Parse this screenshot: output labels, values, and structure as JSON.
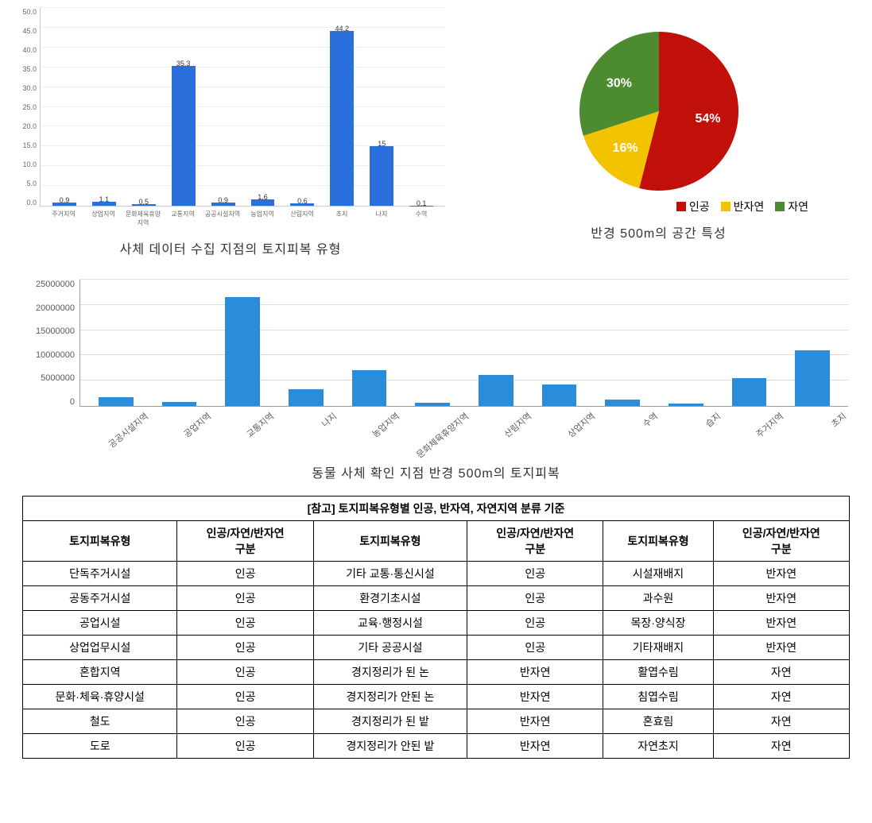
{
  "chart1": {
    "type": "bar",
    "caption": "사체 데이터 수집 지점의 토지피복 유형",
    "categories": [
      "주거지역",
      "상업지역",
      "문화체육휴양지역",
      "교통지역",
      "공공시설지역",
      "농업지역",
      "산림지역",
      "초지",
      "나지",
      "수역"
    ],
    "values": [
      0.9,
      1.1,
      0.5,
      35.3,
      0.9,
      1.6,
      0.6,
      44.2,
      15.0,
      0.1
    ],
    "bar_color": "#2a6fdb",
    "ylim": [
      0,
      50
    ],
    "yticks": [
      50.0,
      45.0,
      40.0,
      35.0,
      30.0,
      25.0,
      20.0,
      15.0,
      10.0,
      5.0,
      0.0
    ],
    "grid_color": "#eeeeee",
    "label_fontsize": 9
  },
  "pie": {
    "type": "pie",
    "caption": "반경 500m의 공간 특성",
    "slices": [
      {
        "label": "인공",
        "value": 54,
        "color": "#c1100a",
        "text": "54%"
      },
      {
        "label": "반자연",
        "value": 16,
        "color": "#f3c300",
        "text": "16%"
      },
      {
        "label": "자연",
        "value": 30,
        "color": "#4d8b31",
        "text": "30%"
      }
    ],
    "legend_marker_size": 12
  },
  "chart2": {
    "type": "bar",
    "caption": "동물 사체 확인 지점 반경 500m의 토지피복",
    "categories": [
      "공공시설지역",
      "공업지역",
      "교통지역",
      "나지",
      "농업지역",
      "문화체육휴양지역",
      "산림지역",
      "상업지역",
      "수역",
      "습지",
      "주거지역",
      "초지"
    ],
    "values": [
      1800000,
      800000,
      21500000,
      3300000,
      7000000,
      700000,
      6200000,
      4200000,
      1200000,
      500000,
      5500000,
      11000000
    ],
    "bar_color": "#2a8ddb",
    "ylim": [
      0,
      25000000
    ],
    "yticks": [
      25000000,
      20000000,
      15000000,
      10000000,
      5000000,
      0
    ],
    "grid_color": "#dddddd"
  },
  "table": {
    "title": "[참고] 토지피복유형별 인공, 반자역, 자연지역 분류 기준",
    "headers": [
      "토지피복유형",
      "인공/자연/반자연\n구분",
      "토지피복유형",
      "인공/자연/반자연\n구분",
      "토지피복유형",
      "인공/자연/반자연\n구분"
    ],
    "rows": [
      [
        "단독주거시설",
        "인공",
        "기타 교통·통신시설",
        "인공",
        "시설재배지",
        "반자연"
      ],
      [
        "공동주거시설",
        "인공",
        "환경기초시설",
        "인공",
        "과수원",
        "반자연"
      ],
      [
        "공업시설",
        "인공",
        "교육·행정시설",
        "인공",
        "목장·양식장",
        "반자연"
      ],
      [
        "상업업무시설",
        "인공",
        "기타 공공시설",
        "인공",
        "기타재배지",
        "반자연"
      ],
      [
        "혼합지역",
        "인공",
        "경지정리가 된 논",
        "반자연",
        "활엽수림",
        "자연"
      ],
      [
        "문화·체육·휴양시설",
        "인공",
        "경지정리가 안된 논",
        "반자연",
        "침엽수림",
        "자연"
      ],
      [
        "철도",
        "인공",
        "경지정리가 된 밭",
        "반자연",
        "혼효림",
        "자연"
      ],
      [
        "도로",
        "인공",
        "경지정리가 안된 밭",
        "반자연",
        "자연초지",
        "자연"
      ]
    ]
  }
}
